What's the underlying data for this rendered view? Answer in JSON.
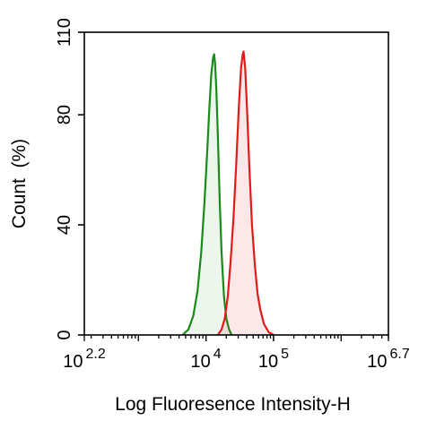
{
  "chart_data": {
    "type": "area",
    "title": "",
    "xlabel": "Log Fluoresence Intensity-H",
    "ylabel": "Count  (%)",
    "x_scale": "log",
    "xlim": [
      158.49,
      5011872
    ],
    "ylim": [
      0,
      110
    ],
    "x_ticks": [
      {
        "base": "10",
        "exp": "2.2",
        "value": 158.49
      },
      {
        "base": "10",
        "exp": "4",
        "value": 10000
      },
      {
        "base": "10",
        "exp": "5",
        "value": 100000
      },
      {
        "base": "10",
        "exp": "6.7",
        "value": 5011872
      }
    ],
    "y_ticks": [
      "0",
      "40",
      "80",
      "110"
    ],
    "y_tick_values": [
      0,
      40,
      80,
      110
    ],
    "grid": false,
    "legend": "none",
    "series": [
      {
        "color": "#1a8a1a",
        "fill": "rgba(26,138,26,0.08)",
        "points": [
          [
            4500,
            0
          ],
          [
            5500,
            2
          ],
          [
            6500,
            7
          ],
          [
            7500,
            16
          ],
          [
            8500,
            30
          ],
          [
            9500,
            48
          ],
          [
            10500,
            68
          ],
          [
            11200,
            82
          ],
          [
            12000,
            95
          ],
          [
            12800,
            101
          ],
          [
            13200,
            102
          ],
          [
            13600,
            99
          ],
          [
            14200,
            90
          ],
          [
            15000,
            72
          ],
          [
            16000,
            48
          ],
          [
            17000,
            30
          ],
          [
            18500,
            14
          ],
          [
            20000,
            6
          ],
          [
            22000,
            2
          ],
          [
            24000,
            0
          ]
        ]
      },
      {
        "color": "#e01b1b",
        "fill": "rgba(224,27,27,0.10)",
        "points": [
          [
            15000,
            0
          ],
          [
            17000,
            2
          ],
          [
            19000,
            6
          ],
          [
            21000,
            14
          ],
          [
            23000,
            26
          ],
          [
            25500,
            42
          ],
          [
            28000,
            62
          ],
          [
            30500,
            82
          ],
          [
            33000,
            97
          ],
          [
            35000,
            102
          ],
          [
            36000,
            103
          ],
          [
            38000,
            97
          ],
          [
            40500,
            82
          ],
          [
            44000,
            60
          ],
          [
            48000,
            40
          ],
          [
            53000,
            25
          ],
          [
            58000,
            15
          ],
          [
            64000,
            9
          ],
          [
            72000,
            4
          ],
          [
            85000,
            1
          ],
          [
            100000,
            0
          ]
        ]
      }
    ]
  }
}
